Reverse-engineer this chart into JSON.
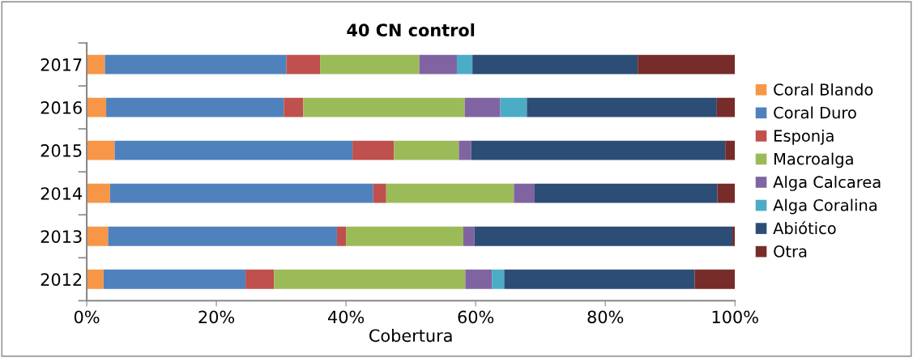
{
  "chart_data": {
    "type": "bar",
    "orientation": "horizontal",
    "stacked": true,
    "title": "40 CN control",
    "xlabel": "Cobertura",
    "categories": [
      "2017",
      "2016",
      "2015",
      "2014",
      "2013",
      "2012"
    ],
    "series": [
      {
        "name": "Coral Blando",
        "color": "#f79646",
        "values": [
          2.8,
          3.0,
          4.3,
          3.6,
          3.3,
          2.6
        ]
      },
      {
        "name": "Coral Duro",
        "color": "#4f81bd",
        "values": [
          28.0,
          27.4,
          36.7,
          40.6,
          35.3,
          21.9
        ]
      },
      {
        "name": "Esponja",
        "color": "#c0504d",
        "values": [
          5.2,
          3.0,
          6.4,
          2.0,
          1.4,
          4.4
        ]
      },
      {
        "name": "Macroalga",
        "color": "#9bbb59",
        "values": [
          15.3,
          24.9,
          10.0,
          19.7,
          18.1,
          29.5
        ]
      },
      {
        "name": "Alga Calcarea",
        "color": "#8064a2",
        "values": [
          5.8,
          5.5,
          1.9,
          3.2,
          1.7,
          4.1
        ]
      },
      {
        "name": "Alga Coralina",
        "color": "#4bacc6",
        "values": [
          2.4,
          4.1,
          0,
          0,
          0,
          1.9
        ]
      },
      {
        "name": "Abiótico",
        "color": "#2c4d75",
        "values": [
          25.5,
          29.3,
          39.2,
          28.2,
          39.8,
          29.4
        ]
      },
      {
        "name": "Otra",
        "color": "#772c2a",
        "values": [
          15.0,
          2.8,
          1.5,
          2.7,
          0.4,
          6.2
        ]
      }
    ],
    "xlim": [
      0,
      100
    ],
    "xticks": [
      {
        "value": 0,
        "label": "0%"
      },
      {
        "value": 20,
        "label": "20%"
      },
      {
        "value": 40,
        "label": "40%"
      },
      {
        "value": 60,
        "label": "60%"
      },
      {
        "value": 80,
        "label": "80%"
      },
      {
        "value": 100,
        "label": "100%"
      }
    ],
    "grid": false,
    "legend": "right"
  }
}
